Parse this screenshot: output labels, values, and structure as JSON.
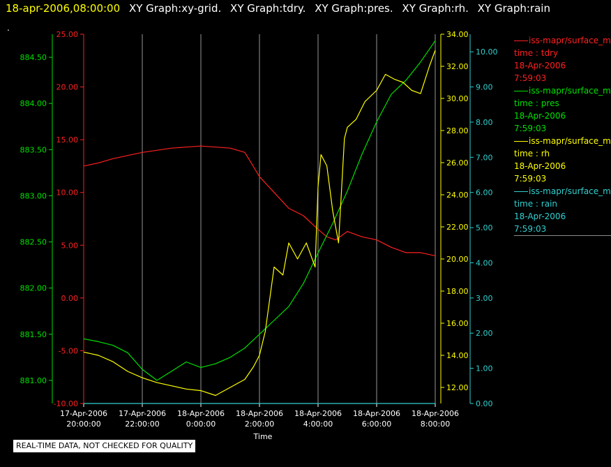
{
  "title": {
    "timestamp": "18-apr-2006,08:00:00",
    "graphs": [
      "XY Graph:xy-grid.",
      "XY Graph:tdry.",
      "XY Graph:pres.",
      "XY Graph:rh.",
      "XY Graph:rain"
    ]
  },
  "stray_mark": ".",
  "colors": {
    "tdry": "#ff2020",
    "pres": "#00e000",
    "rh": "#ffff00",
    "rain": "#30d0d0",
    "grid": "#c8c8c8"
  },
  "legend": [
    {
      "series": "tdry",
      "source": "iss-mapr/surface_m",
      "var": "time : tdry",
      "date": "18-Apr-2006",
      "time": "7:59:03"
    },
    {
      "series": "pres",
      "source": "iss-mapr/surface_m",
      "var": "time : pres",
      "date": "18-Apr-2006",
      "time": "7:59:03"
    },
    {
      "series": "rh",
      "source": "iss-mapr/surface_m",
      "var": "time : rh",
      "date": "18-Apr-2006",
      "time": "7:59:03"
    },
    {
      "series": "rain",
      "source": "iss-mapr/surface_m",
      "var": "time : rain",
      "date": "18-Apr-2006",
      "time": "7:59:03"
    }
  ],
  "disclaimer": "REAL-TIME DATA, NOT CHECKED FOR QUALITY",
  "chart_data": {
    "type": "line",
    "xlabel": "Time",
    "x_tick_labels": [
      [
        "17-Apr-2006",
        "20:00:00"
      ],
      [
        "17-Apr-2006",
        "22:00:00"
      ],
      [
        "18-Apr-2006",
        "0:00:00"
      ],
      [
        "18-Apr-2006",
        "2:00:00"
      ],
      [
        "18-Apr-2006",
        "4:00:00"
      ],
      [
        "18-Apr-2006",
        "6:00:00"
      ],
      [
        "18-Apr-2006",
        "8:00:00"
      ]
    ],
    "x_ticks_hours": [
      20,
      22,
      24,
      26,
      28,
      30,
      32
    ],
    "xlim_hours": [
      20,
      32
    ],
    "grid": "vertical lines at x ticks",
    "axes": {
      "tdry": {
        "side": "left-inner",
        "color": "#ff2020",
        "ylim": [
          -10,
          25
        ],
        "ticks": [
          "-10.00",
          "-5.00",
          "0.00",
          "5.00",
          "10.00",
          "15.00",
          "20.00",
          "25.00"
        ]
      },
      "pres": {
        "side": "left-outer",
        "color": "#00e000",
        "ylim": [
          880.75,
          884.75
        ],
        "ticks": [
          "881.00",
          "881.50",
          "882.00",
          "882.50",
          "883.00",
          "883.50",
          "884.00",
          "884.50"
        ]
      },
      "rh": {
        "side": "right-inner",
        "color": "#ffff00",
        "ylim": [
          11,
          34
        ],
        "ticks": [
          "12.00",
          "14.00",
          "16.00",
          "18.00",
          "20.00",
          "22.00",
          "24.00",
          "26.00",
          "28.00",
          "30.00",
          "32.00",
          "34.00"
        ]
      },
      "rain": {
        "side": "right-outer",
        "color": "#30d0d0",
        "ylim": [
          0,
          10.5
        ],
        "ticks": [
          "0.00",
          "1.00",
          "2.00",
          "3.00",
          "4.00",
          "5.00",
          "6.00",
          "7.00",
          "8.00",
          "9.00",
          "10.00"
        ]
      }
    },
    "series": [
      {
        "name": "time : tdry",
        "axis": "tdry",
        "x": [
          20.0,
          20.5,
          21.0,
          21.5,
          22.0,
          22.5,
          23.0,
          23.5,
          24.0,
          24.5,
          25.0,
          25.5,
          26.0,
          26.5,
          27.0,
          27.5,
          28.0,
          28.3,
          28.6,
          29.0,
          29.5,
          30.0,
          30.5,
          31.0,
          31.5,
          32.0
        ],
        "y": [
          12.5,
          12.8,
          13.2,
          13.5,
          13.8,
          14.0,
          14.2,
          14.3,
          14.4,
          14.3,
          14.2,
          13.8,
          11.5,
          10.0,
          8.5,
          7.8,
          6.5,
          5.8,
          5.5,
          6.3,
          5.8,
          5.5,
          4.8,
          4.3,
          4.3,
          4.0
        ]
      },
      {
        "name": "time : pres",
        "axis": "pres",
        "x": [
          20.0,
          20.5,
          21.0,
          21.5,
          22.0,
          22.5,
          23.0,
          23.5,
          24.0,
          24.5,
          25.0,
          25.5,
          26.0,
          26.5,
          27.0,
          27.5,
          28.0,
          28.5,
          29.0,
          29.5,
          30.0,
          30.5,
          31.0,
          31.5,
          32.0
        ],
        "y": [
          881.45,
          881.42,
          881.38,
          881.3,
          881.12,
          881.0,
          881.1,
          881.2,
          881.14,
          881.18,
          881.25,
          881.35,
          881.5,
          881.65,
          881.8,
          882.05,
          882.38,
          882.7,
          883.05,
          883.45,
          883.8,
          884.1,
          884.25,
          884.45,
          884.68
        ]
      },
      {
        "name": "time : rh",
        "axis": "rh",
        "x": [
          20.0,
          20.5,
          21.0,
          21.5,
          22.0,
          22.5,
          23.0,
          23.5,
          24.0,
          24.5,
          25.0,
          25.5,
          25.8,
          26.0,
          26.2,
          26.5,
          26.8,
          27.0,
          27.3,
          27.6,
          27.9,
          28.0,
          28.1,
          28.3,
          28.5,
          28.7,
          28.9,
          29.0,
          29.3,
          29.6,
          30.0,
          30.3,
          30.6,
          30.9,
          31.2,
          31.5,
          31.8,
          32.0
        ],
        "y": [
          14.2,
          14.0,
          13.6,
          13.0,
          12.6,
          12.3,
          12.1,
          11.9,
          11.8,
          11.5,
          12.0,
          12.5,
          13.3,
          14.0,
          15.5,
          19.5,
          19.0,
          21.0,
          20.0,
          21.0,
          19.5,
          24.5,
          26.5,
          25.8,
          23.0,
          21.0,
          27.5,
          28.2,
          28.7,
          29.8,
          30.5,
          31.5,
          31.2,
          31.0,
          30.5,
          30.3,
          32.0,
          33.0
        ]
      },
      {
        "name": "time : rain",
        "axis": "rain",
        "x": [
          20.0,
          32.0
        ],
        "y": [
          0.0,
          0.0
        ]
      }
    ]
  }
}
